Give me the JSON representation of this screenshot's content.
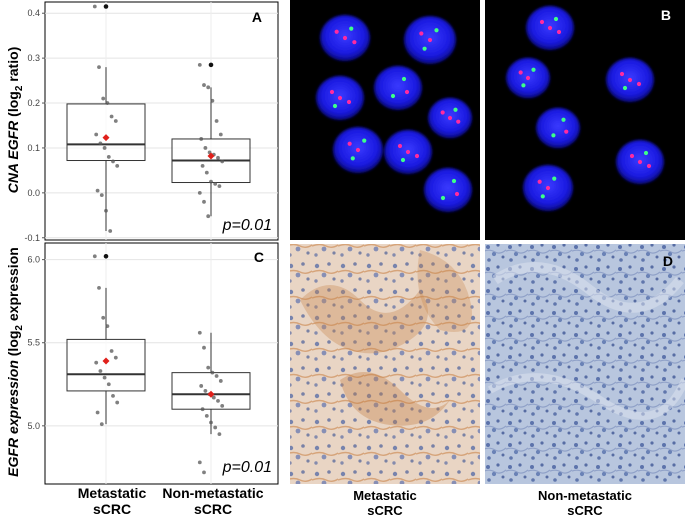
{
  "panels": {
    "A": {
      "letter": "A",
      "pvalue": "p=0.01"
    },
    "B": {
      "letter": "B"
    },
    "C": {
      "letter": "C",
      "pvalue": "p=0.01"
    },
    "D": {
      "letter": "D"
    }
  },
  "ylabel_top": {
    "italic": "CNA EGFR",
    "normal": " (log",
    "sub": "2",
    "end": " ratio)"
  },
  "ylabel_bottom": {
    "italic": "EGFR expression",
    "normal": " (log",
    "sub": "2",
    "end": " expression"
  },
  "x_groups": {
    "metastatic": [
      "Metastatic",
      "sCRC"
    ],
    "nonmetastatic": [
      "Non-metastatic",
      "sCRC"
    ]
  },
  "image_labels": {
    "metastatic": [
      "Metastatic",
      "sCRC"
    ],
    "nonmetastatic": [
      "Non-metastatic",
      "sCRC"
    ]
  },
  "chart_data": [
    {
      "type": "box",
      "panel": "A",
      "categories": [
        "Metastatic sCRC",
        "Non-metastatic sCRC"
      ],
      "yticks": [
        "0.0",
        "0.1",
        "0.2",
        "0.3",
        "0.4",
        "-0.1"
      ],
      "ytick_values": [
        0.0,
        0.1,
        0.2,
        0.3,
        0.4,
        -0.1
      ],
      "ylim": [
        -0.105,
        0.425
      ],
      "boxes": [
        {
          "q1": 0.072,
          "median": 0.108,
          "q3": 0.198,
          "wmin": -0.085,
          "wmax": 0.28,
          "mean": 0.123,
          "points": [
            0.415,
            0.28,
            0.21,
            0.2,
            0.17,
            0.16,
            0.13,
            0.11,
            0.1,
            0.08,
            0.07,
            0.06,
            0.005,
            -0.005,
            -0.04,
            -0.085
          ]
        },
        {
          "q1": 0.023,
          "median": 0.072,
          "q3": 0.12,
          "wmin": -0.052,
          "wmax": 0.235,
          "mean": 0.082,
          "points": [
            0.285,
            0.24,
            0.235,
            0.205,
            0.16,
            0.13,
            0.12,
            0.1,
            0.09,
            0.085,
            0.078,
            0.07,
            0.06,
            0.045,
            0.025,
            0.02,
            0.015,
            0.0,
            -0.02,
            -0.052
          ]
        }
      ]
    },
    {
      "type": "box",
      "panel": "C",
      "categories": [
        "Metastatic sCRC",
        "Non-metastatic sCRC"
      ],
      "yticks": [
        "6.0",
        "5.5",
        "5.0"
      ],
      "ytick_values": [
        6.0,
        5.5,
        5.0
      ],
      "ylim": [
        4.65,
        6.1
      ],
      "boxes": [
        {
          "q1": 5.21,
          "median": 5.31,
          "q3": 5.52,
          "wmin": 5.01,
          "wmax": 5.83,
          "mean": 5.39,
          "points": [
            6.02,
            5.83,
            5.65,
            5.6,
            5.45,
            5.41,
            5.38,
            5.33,
            5.29,
            5.25,
            5.18,
            5.14,
            5.08,
            5.01
          ]
        },
        {
          "q1": 5.1,
          "median": 5.19,
          "q3": 5.32,
          "wmin": 4.95,
          "wmax": 5.56,
          "mean": 5.19,
          "points": [
            5.56,
            5.47,
            5.35,
            5.32,
            5.3,
            5.27,
            5.24,
            5.21,
            5.19,
            5.17,
            5.15,
            5.12,
            5.1,
            5.06,
            5.02,
            4.99,
            4.95,
            4.78,
            4.72
          ]
        }
      ]
    }
  ],
  "fish_nuclei": {
    "B_left": [
      [
        345,
        38,
        25
      ],
      [
        430,
        40,
        26
      ],
      [
        340,
        98,
        24
      ],
      [
        398,
        88,
        24
      ],
      [
        450,
        118,
        22
      ],
      [
        358,
        150,
        25
      ],
      [
        408,
        152,
        24
      ],
      [
        448,
        190,
        24
      ]
    ],
    "B_right": [
      [
        550,
        28,
        24
      ],
      [
        528,
        78,
        22
      ],
      [
        630,
        80,
        24
      ],
      [
        558,
        128,
        22
      ],
      [
        640,
        162,
        24
      ],
      [
        548,
        188,
        25
      ]
    ]
  }
}
